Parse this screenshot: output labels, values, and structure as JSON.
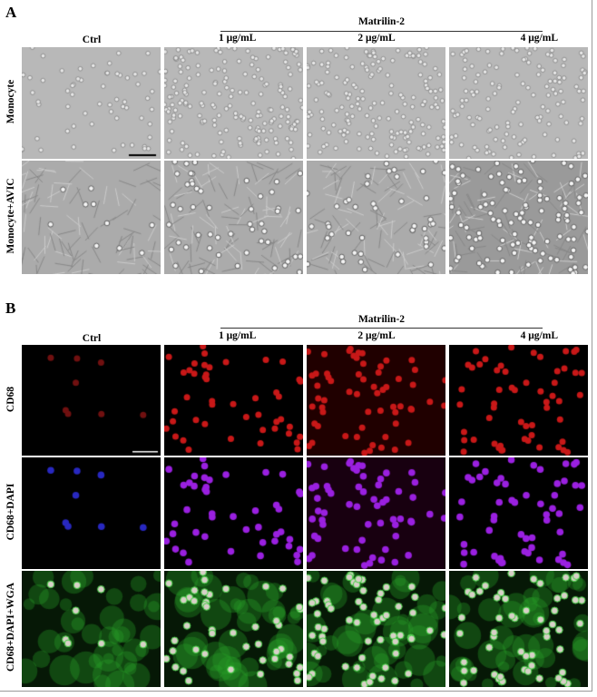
{
  "panelA": {
    "label": "A",
    "group_label": "Matrilin-2",
    "columns": [
      "Ctrl",
      "1 μg/mL",
      "2 μg/mL",
      "4 μg/mL"
    ],
    "rows": [
      "Monocyte",
      "Monocyte+AVIC"
    ]
  },
  "panelB": {
    "label": "B",
    "group_label": "Matrilin-2",
    "columns": [
      "Ctrl",
      "1 μg/mL",
      "2 μg/mL",
      "4 μg/mL"
    ],
    "rows": [
      "CD68",
      "CD68+DAPI",
      "CD68+DAPI+WGA"
    ]
  },
  "colors": {
    "cd68": "#d01010",
    "dapi": "#3030e0",
    "wga": "#20b030",
    "brightfield": "#b4b4b4"
  }
}
